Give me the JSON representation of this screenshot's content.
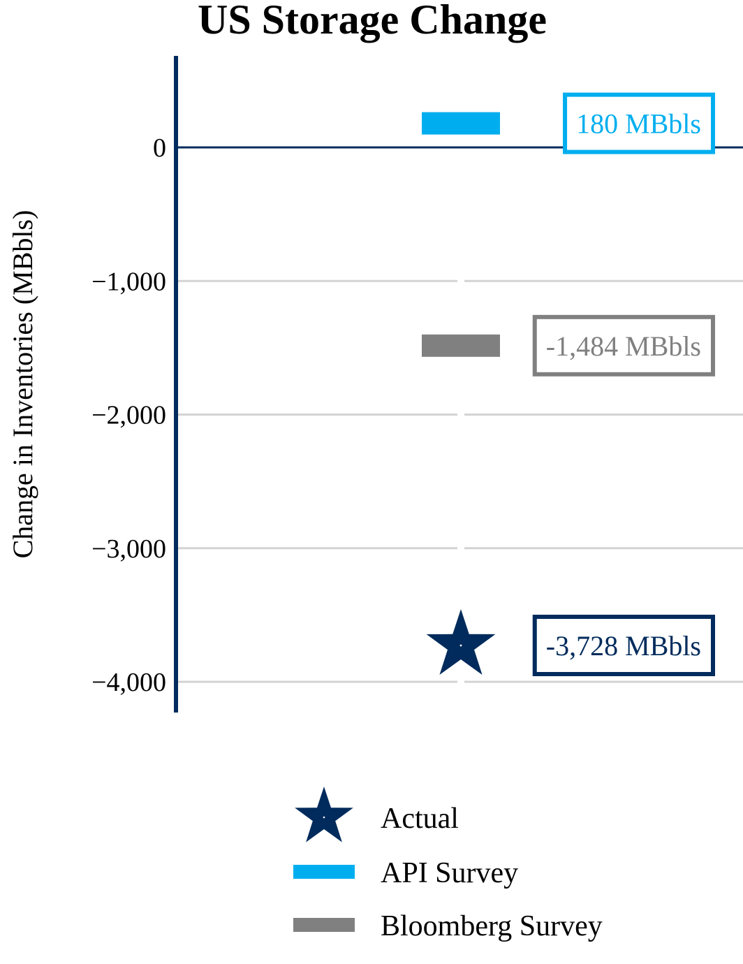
{
  "chart_data": {
    "type": "scatter",
    "title": "US Storage Change",
    "xlabel": "",
    "ylabel": "Change in Inventories (MBbls)",
    "ylim": [
      -4230,
      680
    ],
    "yticks": [
      0,
      -1000,
      -2000,
      -3000,
      -4000
    ],
    "ytick_labels": [
      "0",
      "−1,000",
      "−2,000",
      "−3,000",
      "−4,000"
    ],
    "grid": true,
    "legend_position": "bottom",
    "series": [
      {
        "name": "Actual",
        "marker": "star",
        "color": "#002b5c",
        "value": -3728,
        "label": "-3,728 MBbls"
      },
      {
        "name": "API Survey",
        "marker": "bar",
        "color": "#00aeef",
        "value": 180,
        "label": "180 MBbls"
      },
      {
        "name": "Bloomberg Survey",
        "marker": "bar",
        "color": "#808080",
        "value": -1484,
        "label": "-1,484 MBbls"
      }
    ],
    "colors": {
      "axis": "#002b5c",
      "grid": "#d3d3d3"
    }
  }
}
